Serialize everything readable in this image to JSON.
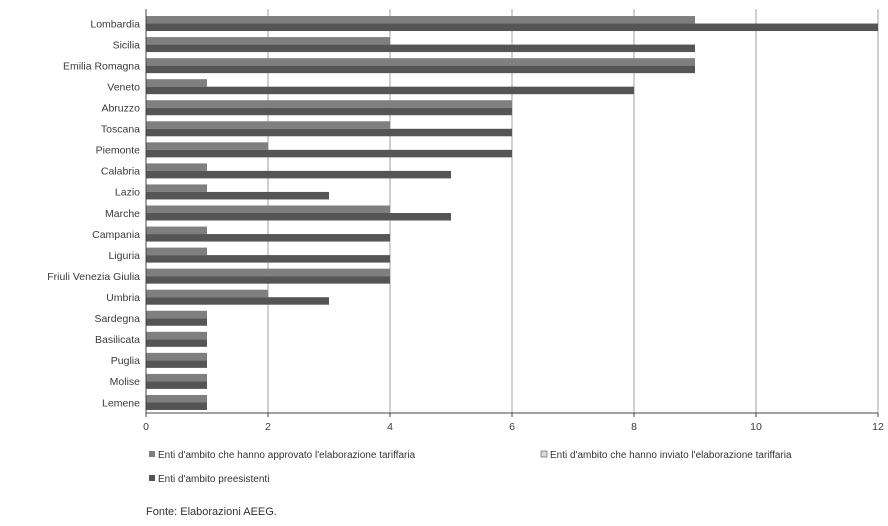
{
  "chart_data": {
    "type": "bar",
    "orientation": "horizontal",
    "categories": [
      "Lombardia",
      "Sicilia",
      "Emilia Romagna",
      "Veneto",
      "Abruzzo",
      "Toscana",
      "Piemonte",
      "Calabria",
      "Lazio",
      "Marche",
      "Campania",
      "Liguria",
      "Friuli Venezia Giulia",
      "Umbria",
      "Sardegna",
      "Basilicata",
      "Puglia",
      "Molise",
      "Lemene"
    ],
    "series": [
      {
        "name": "Enti d'ambito che hanno approvato l'elaborazione tariffaria",
        "values": [
          9,
          4,
          9,
          1,
          6,
          4,
          2,
          1,
          1,
          4,
          1,
          1,
          4,
          2,
          1,
          1,
          1,
          1,
          1
        ]
      },
      {
        "name": "Enti d'ambito che hanno inviato l'elaborazione tariffaria",
        "values": [
          0,
          0,
          0,
          0,
          0,
          0,
          0,
          0,
          0,
          0,
          0,
          0,
          0,
          0,
          0,
          0,
          0,
          0,
          0
        ]
      },
      {
        "name": "Enti d'ambito preesistenti",
        "values": [
          12,
          9,
          9,
          8,
          6,
          6,
          6,
          5,
          3,
          5,
          4,
          4,
          4,
          3,
          1,
          1,
          1,
          1,
          1
        ]
      }
    ],
    "xlim": [
      0,
      12
    ],
    "xticks": [
      "0",
      "2",
      "4",
      "6",
      "8",
      "10",
      "12"
    ],
    "grid": true,
    "legend_position": "bottom",
    "colors": {
      "approved": "#7f7f7f",
      "sent": "#d9d9d9",
      "existing": "#555555",
      "grid": "#8a8a8a",
      "axis": "#444444"
    }
  },
  "source": "Fonte: Elaborazioni AEEG."
}
